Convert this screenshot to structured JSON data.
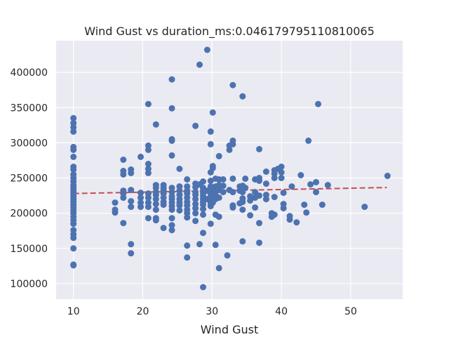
{
  "chart_data": {
    "type": "scatter",
    "title": "Wind Gust vs duration_ms:0.046179795110810065",
    "xlabel": "Wind Gust",
    "ylabel": "",
    "xlim": [
      7.5,
      57.5
    ],
    "ylim": [
      78000,
      445000
    ],
    "xticks": [
      10,
      20,
      30,
      40,
      50
    ],
    "yticks": [
      100000,
      150000,
      200000,
      250000,
      300000,
      350000,
      400000
    ],
    "xtick_labels": [
      "10",
      "20",
      "30",
      "40",
      "50"
    ],
    "ytick_labels": [
      "100000",
      "150000",
      "200000",
      "250000",
      "300000",
      "350000",
      "400000"
    ],
    "grid": true,
    "background": "#eaeaf2",
    "point_color": "#4c72b0",
    "trend_color": "#c44e52",
    "trendline": {
      "x": [
        10,
        55.2
      ],
      "y": [
        228000,
        236500
      ]
    },
    "points": [
      [
        10,
        335000
      ],
      [
        10,
        328000
      ],
      [
        10,
        322000
      ],
      [
        10,
        316000
      ],
      [
        10,
        294000
      ],
      [
        10,
        290000
      ],
      [
        10,
        280000
      ],
      [
        10,
        266000
      ],
      [
        10,
        262000
      ],
      [
        10,
        255000
      ],
      [
        10,
        250000
      ],
      [
        10,
        245000
      ],
      [
        10,
        240000
      ],
      [
        10,
        236000
      ],
      [
        10,
        232000
      ],
      [
        10,
        228000
      ],
      [
        10,
        224000
      ],
      [
        10,
        220000
      ],
      [
        10,
        216000
      ],
      [
        10,
        212000
      ],
      [
        10,
        208000
      ],
      [
        10,
        204000
      ],
      [
        10,
        200000
      ],
      [
        10,
        195000
      ],
      [
        10,
        190000
      ],
      [
        10,
        185000
      ],
      [
        10,
        176000
      ],
      [
        10,
        170000
      ],
      [
        10,
        165000
      ],
      [
        10,
        150000
      ],
      [
        10,
        127000
      ],
      [
        10,
        126000
      ],
      [
        16,
        215000
      ],
      [
        16,
        205000
      ],
      [
        16,
        201000
      ],
      [
        17.2,
        276000
      ],
      [
        17.2,
        260000
      ],
      [
        17.2,
        255000
      ],
      [
        17.2,
        232000
      ],
      [
        17.2,
        228000
      ],
      [
        17.2,
        222000
      ],
      [
        17.2,
        186000
      ],
      [
        18.3,
        262000
      ],
      [
        18.3,
        257000
      ],
      [
        18.3,
        233000
      ],
      [
        18.3,
        217000
      ],
      [
        18.3,
        209000
      ],
      [
        18.3,
        156000
      ],
      [
        18.3,
        143000
      ],
      [
        19.7,
        280000
      ],
      [
        19.7,
        229000
      ],
      [
        19.7,
        222000
      ],
      [
        19.7,
        215000
      ],
      [
        19.7,
        209000
      ],
      [
        20.8,
        355000
      ],
      [
        20.8,
        296000
      ],
      [
        20.8,
        290000
      ],
      [
        20.8,
        270000
      ],
      [
        20.8,
        263000
      ],
      [
        20.8,
        257000
      ],
      [
        20.8,
        228000
      ],
      [
        20.8,
        222000
      ],
      [
        20.8,
        215000
      ],
      [
        20.8,
        209000
      ],
      [
        20.8,
        193000
      ],
      [
        21.9,
        326000
      ],
      [
        21.9,
        240000
      ],
      [
        21.9,
        236000
      ],
      [
        21.9,
        230000
      ],
      [
        21.9,
        226000
      ],
      [
        21.9,
        220000
      ],
      [
        21.9,
        213000
      ],
      [
        21.9,
        205000
      ],
      [
        21.9,
        193000
      ],
      [
        21.9,
        190000
      ],
      [
        23,
        240000
      ],
      [
        23,
        236000
      ],
      [
        23,
        232000
      ],
      [
        23,
        228000
      ],
      [
        23,
        222000
      ],
      [
        23,
        216000
      ],
      [
        23,
        212000
      ],
      [
        23,
        179000
      ],
      [
        24.2,
        390000
      ],
      [
        24.2,
        349000
      ],
      [
        24.2,
        305000
      ],
      [
        24.2,
        303000
      ],
      [
        24.2,
        282000
      ],
      [
        24.2,
        236000
      ],
      [
        24.2,
        230000
      ],
      [
        24.2,
        224000
      ],
      [
        24.2,
        220000
      ],
      [
        24.2,
        215000
      ],
      [
        24.2,
        210000
      ],
      [
        24.2,
        205000
      ],
      [
        24.2,
        193000
      ],
      [
        24.2,
        183000
      ],
      [
        24.2,
        176000
      ],
      [
        25.3,
        263000
      ],
      [
        25.3,
        238000
      ],
      [
        25.3,
        232000
      ],
      [
        25.3,
        226000
      ],
      [
        25.3,
        220000
      ],
      [
        25.3,
        215000
      ],
      [
        25.3,
        211000
      ],
      [
        25.3,
        204000
      ],
      [
        26.4,
        248000
      ],
      [
        26.4,
        238000
      ],
      [
        26.4,
        232000
      ],
      [
        26.4,
        228000
      ],
      [
        26.4,
        222000
      ],
      [
        26.4,
        216000
      ],
      [
        26.4,
        211000
      ],
      [
        26.4,
        205000
      ],
      [
        26.4,
        200000
      ],
      [
        26.4,
        194000
      ],
      [
        26.4,
        154000
      ],
      [
        26.4,
        137000
      ],
      [
        27.6,
        324000
      ],
      [
        27.6,
        242000
      ],
      [
        27.6,
        237000
      ],
      [
        27.6,
        230000
      ],
      [
        27.6,
        226000
      ],
      [
        27.6,
        220000
      ],
      [
        27.6,
        213000
      ],
      [
        27.6,
        207000
      ],
      [
        27.6,
        200000
      ],
      [
        27.6,
        189000
      ],
      [
        28.2,
        411000
      ],
      [
        28.2,
        241000
      ],
      [
        28.2,
        156000
      ],
      [
        28.7,
        245000
      ],
      [
        28.7,
        236000
      ],
      [
        28.7,
        232000
      ],
      [
        28.7,
        228000
      ],
      [
        28.7,
        224000
      ],
      [
        28.7,
        220000
      ],
      [
        28.7,
        216000
      ],
      [
        28.7,
        212000
      ],
      [
        28.7,
        206000
      ],
      [
        28.7,
        198000
      ],
      [
        28.7,
        172000
      ],
      [
        28.7,
        95000
      ],
      [
        29.3,
        432000
      ],
      [
        29.3,
        232000
      ],
      [
        29.3,
        220000
      ],
      [
        29.8,
        316000
      ],
      [
        29.8,
        298000
      ],
      [
        29.8,
        258000
      ],
      [
        29.8,
        246000
      ],
      [
        29.8,
        238000
      ],
      [
        29.8,
        232000
      ],
      [
        29.8,
        228000
      ],
      [
        29.8,
        223000
      ],
      [
        29.8,
        218000
      ],
      [
        29.8,
        214000
      ],
      [
        29.8,
        210000
      ],
      [
        29.8,
        185000
      ],
      [
        30.1,
        343000
      ],
      [
        30.1,
        267000
      ],
      [
        30.1,
        264000
      ],
      [
        30.1,
        215000
      ],
      [
        30.5,
        249000
      ],
      [
        30.5,
        238000
      ],
      [
        30.5,
        232000
      ],
      [
        30.5,
        226000
      ],
      [
        30.5,
        220000
      ],
      [
        30.5,
        198000
      ],
      [
        30.5,
        155000
      ],
      [
        31,
        281000
      ],
      [
        31,
        248000
      ],
      [
        31,
        240000
      ],
      [
        31,
        233000
      ],
      [
        31,
        222000
      ],
      [
        31,
        195000
      ],
      [
        31,
        122000
      ],
      [
        31.6,
        248000
      ],
      [
        31.6,
        239000
      ],
      [
        31.6,
        230000
      ],
      [
        32.2,
        140000
      ],
      [
        32.5,
        296000
      ],
      [
        32.5,
        290000
      ],
      [
        32.5,
        233000
      ],
      [
        33,
        382000
      ],
      [
        33,
        303000
      ],
      [
        33,
        298000
      ],
      [
        33,
        249000
      ],
      [
        33,
        230000
      ],
      [
        33,
        211000
      ],
      [
        33,
        208000
      ],
      [
        34,
        238000
      ],
      [
        34,
        232000
      ],
      [
        34,
        214000
      ],
      [
        34.4,
        366000
      ],
      [
        34.4,
        239000
      ],
      [
        34.4,
        230000
      ],
      [
        34.4,
        221000
      ],
      [
        34.4,
        216000
      ],
      [
        34.4,
        205000
      ],
      [
        34.4,
        160000
      ],
      [
        34.8,
        249000
      ],
      [
        34.8,
        236000
      ],
      [
        35.5,
        224000
      ],
      [
        35.5,
        218000
      ],
      [
        35.5,
        197000
      ],
      [
        36.2,
        248000
      ],
      [
        36.2,
        230000
      ],
      [
        36.2,
        222000
      ],
      [
        36.2,
        208000
      ],
      [
        36.8,
        291000
      ],
      [
        36.8,
        250000
      ],
      [
        36.8,
        246000
      ],
      [
        36.8,
        225000
      ],
      [
        36.8,
        186000
      ],
      [
        36.8,
        158000
      ],
      [
        37.8,
        259000
      ],
      [
        37.8,
        242000
      ],
      [
        37.8,
        226000
      ],
      [
        37.8,
        220000
      ],
      [
        38.6,
        200000
      ],
      [
        38.6,
        195000
      ],
      [
        39,
        261000
      ],
      [
        39,
        256000
      ],
      [
        39,
        250000
      ],
      [
        39,
        223000
      ],
      [
        39,
        198000
      ],
      [
        39.5,
        263000
      ],
      [
        40,
        266000
      ],
      [
        40,
        258000
      ],
      [
        40,
        250000
      ],
      [
        40.3,
        229000
      ],
      [
        40.3,
        213000
      ],
      [
        40.3,
        207000
      ],
      [
        41.2,
        196000
      ],
      [
        41.2,
        191000
      ],
      [
        41.5,
        238000
      ],
      [
        42.2,
        187000
      ],
      [
        42.8,
        254000
      ],
      [
        43.3,
        212000
      ],
      [
        43.6,
        201000
      ],
      [
        43.9,
        303000
      ],
      [
        44.2,
        241000
      ],
      [
        45,
        230000
      ],
      [
        45,
        244000
      ],
      [
        45.3,
        355000
      ],
      [
        45.9,
        212000
      ],
      [
        46.7,
        240000
      ],
      [
        52,
        209000
      ],
      [
        55.3,
        253000
      ]
    ]
  }
}
